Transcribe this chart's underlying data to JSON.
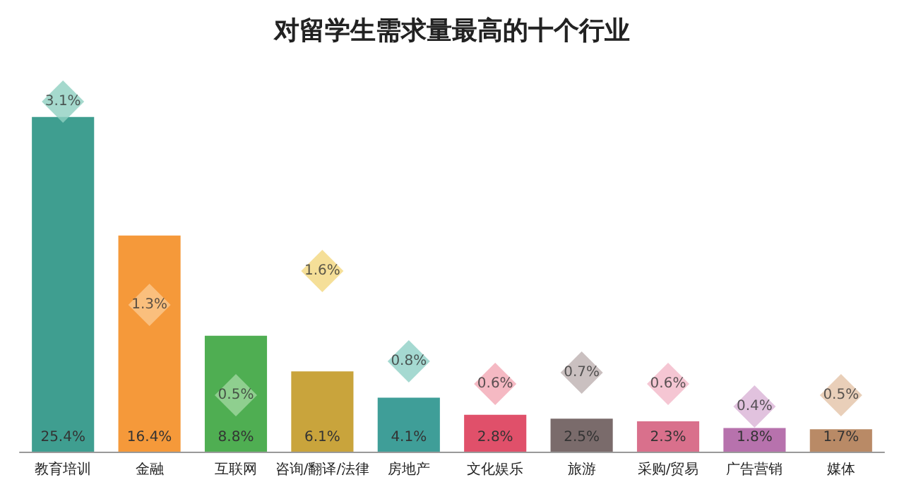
{
  "chart_data": {
    "type": "bar",
    "title": "对留学生需求量最高的十个行业",
    "categories": [
      "教育培训",
      "金融",
      "互联网",
      "咨询/翻译/法律",
      "房地产",
      "文化娱乐",
      "旅游",
      "采购/贸易",
      "广告营销",
      "媒体"
    ],
    "series": [
      {
        "values": [
          25.4,
          16.4,
          8.8,
          6.1,
          4.1,
          2.8,
          2.5,
          2.3,
          1.8,
          1.7
        ],
        "value_labels": [
          "25.4%",
          "16.4%",
          "8.8%",
          "6.1%",
          "4.1%",
          "2.8%",
          "2.5%",
          "2.3%",
          "1.8%",
          "1.7%"
        ],
        "colors": [
          "#3f9e90",
          "#f5993a",
          "#4fae52",
          "#c9a43c",
          "#3f9e98",
          "#e0506a",
          "#7a6b6b",
          "#d9708c",
          "#b772ad",
          "#b98a66"
        ]
      },
      {
        "type": "scatter",
        "axis": "y2",
        "marker": "diamond",
        "values": [
          3.1,
          1.3,
          0.5,
          1.6,
          0.8,
          0.6,
          0.7,
          0.6,
          0.4,
          0.5
        ],
        "value_labels": [
          "3.1%",
          "1.3%",
          "0.5%",
          "1.6%",
          "0.8%",
          "0.6%",
          "0.7%",
          "0.6%",
          "0.4%",
          "0.5%"
        ],
        "colors": [
          "#8fcfc0",
          "#fbc88f",
          "#9fd79f",
          "#f2d77e",
          "#8fcfc6",
          "#f3a7b4",
          "#bdb0b0",
          "#f3b8c8",
          "#dab3d6",
          "#e3c3a7"
        ]
      }
    ]
  }
}
